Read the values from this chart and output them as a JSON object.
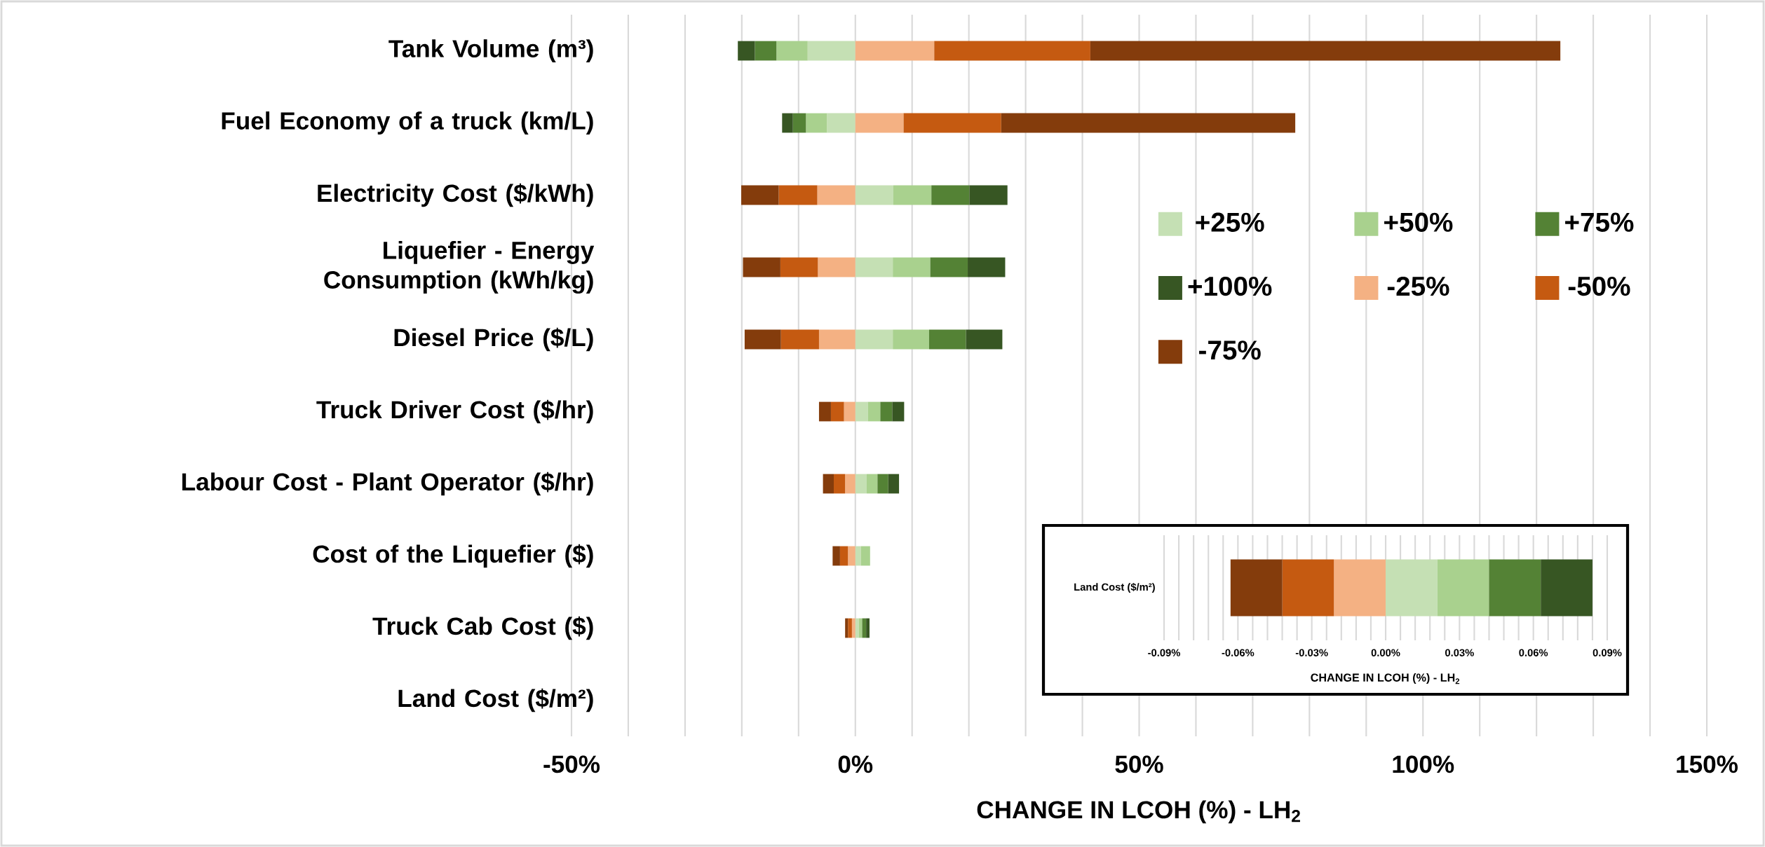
{
  "chart_data": [
    {
      "type": "bar",
      "orientation": "horizontal",
      "stacked": true,
      "grid": true,
      "legend": "right",
      "categories": [
        "Tank Volume (m³)",
        "Fuel Economy of a truck (km/L)",
        "Electricity Cost ($/kWh)",
        "Liquefier - Energy Consumption (kWh/kg)",
        "Diesel Price ($/L)",
        "Truck Driver Cost ($/hr)",
        "Labour Cost - Plant Operator ($/hr)",
        "Cost of the Liquefier ($)",
        "Truck Cab Cost ($)",
        "Land Cost ($/m²)"
      ],
      "xlabel": "CHANGE IN LCOH (%) - LH$_{2}$",
      "xlim": [
        -50,
        150
      ],
      "xticks": [
        {
          "value": -50,
          "label": "-50%"
        },
        {
          "value": 0,
          "label": "0%"
        },
        {
          "value": 50,
          "label": "50%"
        },
        {
          "value": 100,
          "label": "100%"
        },
        {
          "value": 150,
          "label": "150%"
        }
      ],
      "series": [
        {
          "name": "+25%",
          "color": "#c5e0b4",
          "values": [
            -8.4,
            -5.0,
            6.7,
            6.6,
            6.6,
            2.2,
            2.0,
            1.0,
            0.6,
            null
          ]
        },
        {
          "name": "+50%",
          "color": "#a9d18e",
          "values": [
            -5.5,
            -3.7,
            6.7,
            6.6,
            6.4,
            2.2,
            1.9,
            1.6,
            0.6,
            null
          ]
        },
        {
          "name": "+75%",
          "color": "#548235",
          "values": [
            -3.8,
            -2.3,
            6.7,
            6.6,
            6.5,
            2.1,
            1.9,
            0,
            0.7,
            null
          ]
        },
        {
          "name": "+100%",
          "color": "#375623",
          "values": [
            -3.0,
            -1.9,
            6.7,
            6.6,
            6.4,
            2.1,
            1.9,
            0,
            0.6,
            null
          ]
        },
        {
          "name": "-25%",
          "color": "#f4b183",
          "values": [
            13.9,
            8.5,
            -6.7,
            -6.6,
            -6.4,
            -2.0,
            -1.8,
            -1.3,
            -0.6,
            null
          ]
        },
        {
          "name": "-50%",
          "color": "#c55a11",
          "values": [
            27.5,
            17.2,
            -6.8,
            -6.6,
            -6.7,
            -2.3,
            -2.0,
            -1.4,
            -0.7,
            null
          ]
        },
        {
          "name": "-75%",
          "color": "#843c0c",
          "values": [
            82.8,
            51.8,
            -6.6,
            -6.6,
            -6.4,
            -2.1,
            -1.9,
            -1.3,
            -0.5,
            null
          ]
        }
      ]
    },
    {
      "type": "bar",
      "orientation": "horizontal",
      "stacked": true,
      "grid": true,
      "categories": [
        "Land Cost ($/m²)"
      ],
      "xlabel": "CHANGE IN LCOH (%) - LH$_{2}$",
      "xlim": [
        -0.09,
        0.09
      ],
      "xticks": [
        {
          "value": -0.09,
          "label": "-0.09%"
        },
        {
          "value": -0.06,
          "label": "-0.06%"
        },
        {
          "value": -0.03,
          "label": "-0.03%"
        },
        {
          "value": 0,
          "label": "0.00%"
        },
        {
          "value": 0.03,
          "label": "0.03%"
        },
        {
          "value": 0.06,
          "label": "0.06%"
        },
        {
          "value": 0.09,
          "label": "0.09%"
        }
      ],
      "series": [
        {
          "color": "#c5e0b4",
          "values": [
            0.021
          ]
        },
        {
          "color": "#a9d18e",
          "values": [
            0.021
          ]
        },
        {
          "color": "#548235",
          "values": [
            0.021
          ]
        },
        {
          "color": "#375623",
          "values": [
            0.021
          ]
        },
        {
          "color": "#f4b183",
          "values": [
            -0.021
          ]
        },
        {
          "color": "#c55a11",
          "values": [
            -0.021
          ]
        },
        {
          "color": "#843c0c",
          "values": [
            -0.021
          ]
        }
      ]
    }
  ]
}
